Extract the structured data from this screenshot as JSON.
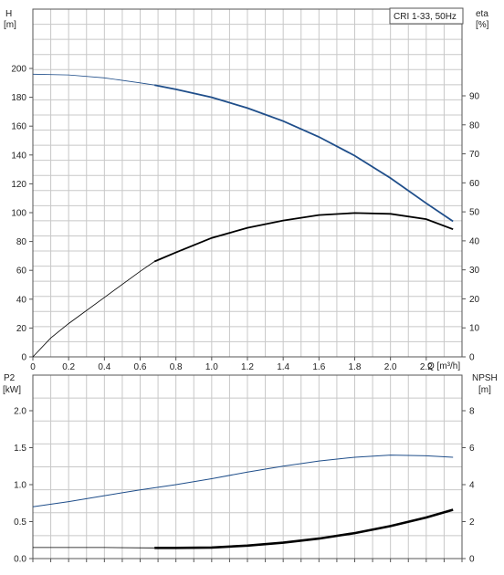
{
  "legend_label": "CRI 1-33, 50Hz",
  "colors": {
    "blue": "#1f4e8a",
    "black": "#000000",
    "grid": "#c8c8c8",
    "axis": "#555555"
  },
  "chart_data": [
    {
      "type": "line",
      "panel": "top",
      "x_unit_label": "Q [m³/h]",
      "xlim": [
        0,
        2.4
      ],
      "x_ticks": [
        0,
        0.2,
        0.4,
        0.6,
        0.8,
        1.0,
        1.2,
        1.4,
        1.6,
        1.8,
        2.0,
        2.2
      ],
      "left_axis": {
        "label": "H",
        "unit": "[m]",
        "lim": [
          0,
          200
        ],
        "ticks": [
          0,
          20,
          40,
          60,
          80,
          100,
          120,
          140,
          160,
          180,
          200
        ]
      },
      "right_axis": {
        "label": "eta",
        "unit": "[%]",
        "lim": [
          0,
          100
        ],
        "ticks": [
          0,
          10,
          20,
          30,
          40,
          50,
          60,
          70,
          80,
          90
        ]
      },
      "series": [
        {
          "axis": "left",
          "color": "#1f4e8a",
          "bold_from": 0.68,
          "x": [
            0,
            0.2,
            0.4,
            0.6,
            0.68,
            0.8,
            1.0,
            1.2,
            1.4,
            1.6,
            1.8,
            2.0,
            2.2,
            2.35
          ],
          "y": [
            196,
            195.5,
            193.5,
            190,
            188.5,
            185.5,
            180,
            172.5,
            163.5,
            152.5,
            139.5,
            124,
            106.5,
            94
          ]
        },
        {
          "axis": "right",
          "color": "#000000",
          "bold_from": 0.68,
          "x": [
            0,
            0.1,
            0.2,
            0.4,
            0.6,
            0.68,
            0.8,
            1.0,
            1.2,
            1.4,
            1.6,
            1.8,
            2.0,
            2.2,
            2.35
          ],
          "y": [
            0,
            6.5,
            11.5,
            20.5,
            29.5,
            32.9,
            36,
            41,
            44.5,
            47,
            48.9,
            49.6,
            49.3,
            47.5,
            44
          ]
        }
      ]
    },
    {
      "type": "line",
      "panel": "bottom",
      "xlim": [
        0,
        2.4
      ],
      "left_axis": {
        "label": "P2",
        "unit": "[kW]",
        "lim": [
          0,
          2.0
        ],
        "ticks": [
          "0.0",
          "0.5",
          "1.0",
          "1.5",
          "2.0"
        ]
      },
      "right_axis": {
        "label": "NPSH",
        "unit": "[m]",
        "lim": [
          0,
          8
        ],
        "ticks": [
          0,
          2,
          4,
          6,
          8
        ]
      },
      "series": [
        {
          "axis": "left",
          "color": "#1f4e8a",
          "x": [
            0,
            0.2,
            0.4,
            0.6,
            0.8,
            1.0,
            1.2,
            1.4,
            1.6,
            1.8,
            2.0,
            2.2,
            2.35
          ],
          "y": [
            0.7,
            0.77,
            0.85,
            0.93,
            1.0,
            1.08,
            1.17,
            1.25,
            1.32,
            1.37,
            1.4,
            1.39,
            1.37
          ]
        },
        {
          "axis": "right",
          "color": "#000000",
          "thin_until": 0.68,
          "x": [
            0,
            0.2,
            0.4,
            0.68,
            0.8,
            1.0,
            1.2,
            1.4,
            1.6,
            1.8,
            2.0,
            2.2,
            2.35
          ],
          "y": [
            0.6,
            0.6,
            0.6,
            0.58,
            0.58,
            0.6,
            0.7,
            0.86,
            1.08,
            1.38,
            1.76,
            2.22,
            2.64
          ]
        }
      ]
    }
  ]
}
